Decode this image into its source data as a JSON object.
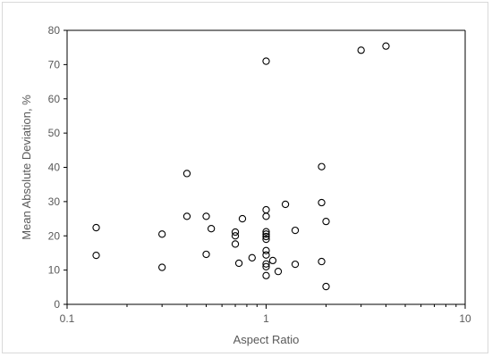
{
  "chart_data": {
    "type": "scatter",
    "title": "",
    "xlabel": "Aspect Ratio",
    "ylabel": "Mean Absolute Deviation, %",
    "xscale": "log",
    "xlim": [
      0.1,
      10
    ],
    "ylim": [
      0,
      80
    ],
    "x_ticks": [
      "0.1",
      "1",
      "10"
    ],
    "y_ticks": [
      "0",
      "10",
      "20",
      "30",
      "40",
      "50",
      "60",
      "70",
      "80"
    ],
    "grid": false,
    "legend": "none",
    "marker": "open-circle",
    "colors": {
      "marker": "#000000",
      "axis": "#000000",
      "text": "#595959"
    },
    "points": [
      [
        0.14,
        22.4
      ],
      [
        0.14,
        14.3
      ],
      [
        0.3,
        20.5
      ],
      [
        0.3,
        10.8
      ],
      [
        0.4,
        38.2
      ],
      [
        0.4,
        25.7
      ],
      [
        0.5,
        25.7
      ],
      [
        0.5,
        14.6
      ],
      [
        0.53,
        22.1
      ],
      [
        0.7,
        21.1
      ],
      [
        0.7,
        20.0
      ],
      [
        0.7,
        17.6
      ],
      [
        0.73,
        12.0
      ],
      [
        0.76,
        25.0
      ],
      [
        0.85,
        13.6
      ],
      [
        1.0,
        71.0
      ],
      [
        1.0,
        27.6
      ],
      [
        1.0,
        25.7
      ],
      [
        1.0,
        21.2
      ],
      [
        1.0,
        20.5
      ],
      [
        1.0,
        19.8
      ],
      [
        1.0,
        19.0
      ],
      [
        1.0,
        15.7
      ],
      [
        1.0,
        14.4
      ],
      [
        1.0,
        11.8
      ],
      [
        1.0,
        11.0
      ],
      [
        1.0,
        8.4
      ],
      [
        1.08,
        12.8
      ],
      [
        1.15,
        9.6
      ],
      [
        1.25,
        29.2
      ],
      [
        1.4,
        21.6
      ],
      [
        1.4,
        11.7
      ],
      [
        1.9,
        40.2
      ],
      [
        1.9,
        29.7
      ],
      [
        1.9,
        12.5
      ],
      [
        2.0,
        24.2
      ],
      [
        2.0,
        5.2
      ],
      [
        3.0,
        74.2
      ],
      [
        4.0,
        75.4
      ]
    ]
  }
}
